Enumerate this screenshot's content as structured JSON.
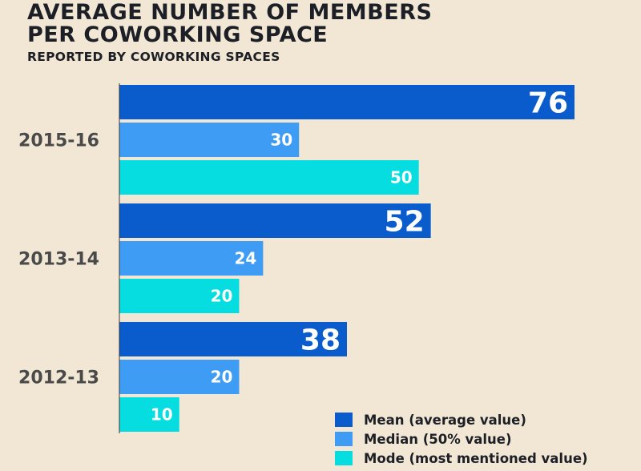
{
  "title_line1": "AVERAGE NUMBER OF MEMBERS",
  "title_line2": "PER COWORKING SPACE",
  "subtitle": "REPORTED BY COWORKING SPACES",
  "colors": {
    "background": "#f2e7d5",
    "mean": "#0a5bcb",
    "median": "#3f9cf5",
    "mode": "#05dde1",
    "axis": "#3a3a3a",
    "category_text": "#4a4a4a",
    "value_text": "#ffffff"
  },
  "chart_data": {
    "type": "bar",
    "orientation": "horizontal",
    "title": "AVERAGE NUMBER OF MEMBERS PER COWORKING SPACE",
    "subtitle": "REPORTED BY COWORKING SPACES",
    "categories": [
      "2015-16",
      "2013-14",
      "2012-13"
    ],
    "series": [
      {
        "name": "Mean (average value)",
        "values": [
          76,
          52,
          38
        ]
      },
      {
        "name": "Median (50% value)",
        "values": [
          30,
          24,
          20
        ]
      },
      {
        "name": "Mode (most mentioned value)",
        "values": [
          50,
          20,
          10
        ]
      }
    ],
    "xlim": [
      0,
      76
    ],
    "grid": false,
    "legend": "bottom-right",
    "data_labels": true
  },
  "legend": [
    {
      "label": "Mean (average value)",
      "color": "#0a5bcb"
    },
    {
      "label": "Median (50% value)",
      "color": "#3f9cf5"
    },
    {
      "label": "Mode (most mentioned value)",
      "color": "#05dde1"
    }
  ]
}
